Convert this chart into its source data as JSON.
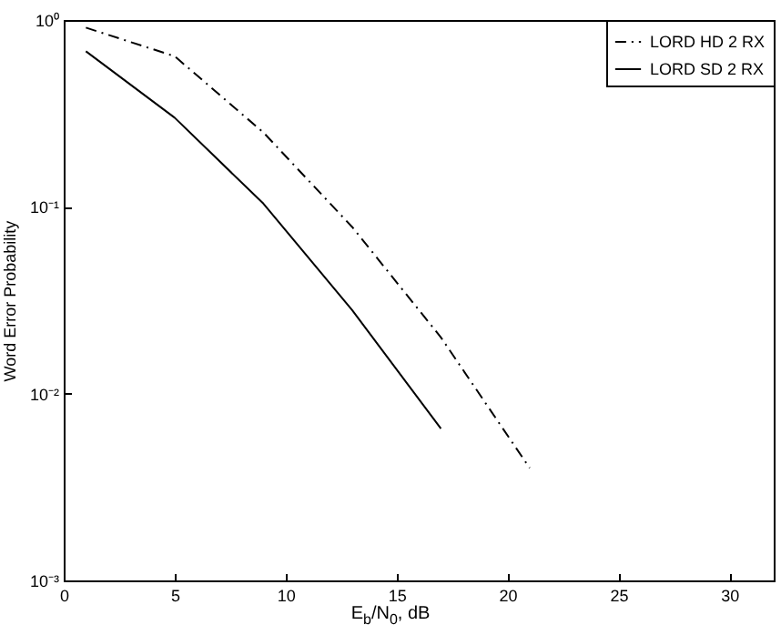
{
  "chart_data": {
    "type": "line",
    "xlabel": "E$_{b}$/N$_{0}$, dB",
    "ylabel": "Word Error Probability",
    "log": "y",
    "grid": false,
    "legend": "top right",
    "xlim": [
      0,
      32
    ],
    "xticks": [
      0,
      5,
      10,
      15,
      20,
      25,
      30
    ],
    "ylim": [
      0.001,
      1
    ],
    "yticks": [
      {
        "value": 0.001,
        "label": "10⁻³"
      },
      {
        "value": 0.01,
        "label": "10⁻²"
      },
      {
        "value": 0.1,
        "label": "10⁻¹"
      },
      {
        "value": 1,
        "label": "10⁰"
      }
    ],
    "series": [
      {
        "name": "LORD HD 2 RX",
        "color": "#000000",
        "line_style": "dashed",
        "x": [
          1,
          5,
          9,
          13,
          17,
          21
        ],
        "values": [
          0.91,
          0.64,
          0.25,
          0.078,
          0.02,
          0.004
        ]
      },
      {
        "name": "LORD SD 2 RX",
        "color": "#000000",
        "line_style": "solid",
        "x": [
          1,
          5,
          9,
          13,
          17
        ],
        "values": [
          0.68,
          0.3,
          0.104,
          0.028,
          0.0065
        ]
      }
    ]
  }
}
